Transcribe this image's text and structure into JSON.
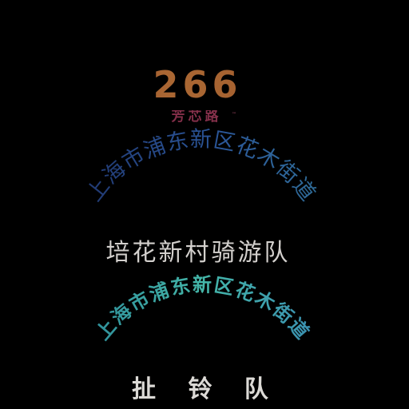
{
  "logo": {
    "number": "266",
    "subtitle": "芳芯路",
    "trademark": "™"
  },
  "group_1": {
    "arc_text": "上海市浦东新区花木街道",
    "team_name": "培花新村骑游队"
  },
  "group_2": {
    "arc_text": "上海市浦东新区花木街道",
    "team_name": "扯 铃 队"
  },
  "colors": {
    "background": "#000000",
    "logo_orange": "#c97a3d",
    "logo_magenta": "#b14a66",
    "arc_blue": "#2f5ea8",
    "arc_teal": "#44b6a8",
    "text_light": "#d3d0cd"
  }
}
